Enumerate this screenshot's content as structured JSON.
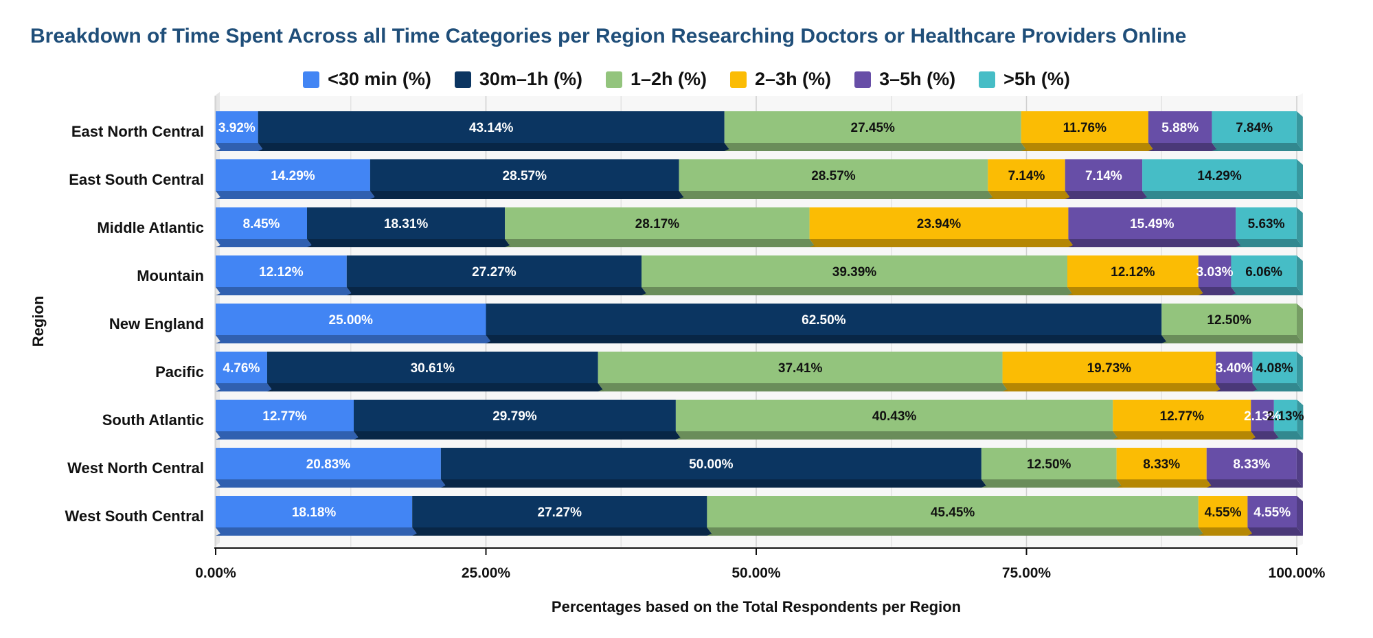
{
  "chart_data": {
    "type": "bar",
    "orientation": "horizontal",
    "stacked": true,
    "title": "Breakdown of Time Spent Across all Time Categories per Region Researching Doctors or Healthcare Providers Online",
    "xlabel": "Percentages based on the Total Respondents per Region",
    "ylabel": "Region",
    "xlim": [
      0,
      100
    ],
    "x_ticks": [
      0,
      25,
      50,
      75,
      100
    ],
    "x_tick_labels": [
      "0.00%",
      "25.00%",
      "50.00%",
      "75.00%",
      "100.00%"
    ],
    "legend_position": "top-center",
    "grid": true,
    "categories": [
      "East North Central",
      "East South Central",
      "Middle Atlantic",
      "Mountain",
      "New England",
      "Pacific",
      "South Atlantic",
      "West North Central",
      "West South Central"
    ],
    "series": [
      {
        "name": "<30 min (%)",
        "color": "#4285f4",
        "values": [
          3.92,
          14.29,
          8.45,
          12.12,
          25.0,
          4.76,
          12.77,
          20.83,
          18.18
        ],
        "labels": [
          "3.92%",
          "14.29%",
          "8.45%",
          "12.12%",
          "25.00%",
          "4.76%",
          "12.77%",
          "20.83%",
          "18.18%"
        ]
      },
      {
        "name": "30m–1h (%)",
        "color": "#0b3561",
        "values": [
          43.14,
          28.57,
          18.31,
          27.27,
          62.5,
          30.61,
          29.79,
          50.0,
          27.27
        ],
        "labels": [
          "43.14%",
          "28.57%",
          "18.31%",
          "27.27%",
          "62.50%",
          "30.61%",
          "29.79%",
          "50.00%",
          "27.27%"
        ]
      },
      {
        "name": "1–2h (%)",
        "color": "#93c47d",
        "values": [
          27.45,
          28.57,
          28.17,
          39.39,
          12.5,
          37.41,
          40.43,
          12.5,
          45.45
        ],
        "labels": [
          "27.45%",
          "28.57%",
          "28.17%",
          "39.39%",
          "12.50%",
          "37.41%",
          "40.43%",
          "12.50%",
          "45.45%"
        ]
      },
      {
        "name": "2–3h (%)",
        "color": "#fbbc04",
        "values": [
          11.76,
          7.14,
          23.94,
          12.12,
          0,
          19.73,
          12.77,
          8.33,
          4.55
        ],
        "labels": [
          "11.76%",
          "7.14%",
          "23.94%",
          "12.12%",
          "",
          "19.73%",
          "12.77%",
          "8.33%",
          "4.55%"
        ]
      },
      {
        "name": "3–5h (%)",
        "color": "#674ea7",
        "values": [
          5.88,
          7.14,
          15.49,
          3.03,
          0,
          3.4,
          2.13,
          8.33,
          4.55
        ],
        "labels": [
          "5.88%",
          "7.14%",
          "15.49%",
          "3.03%",
          "",
          "3.40%",
          "2.13%",
          "8.33%",
          "4.55%"
        ]
      },
      {
        "name": ">5h (%)",
        "color": "#46bdc6",
        "values": [
          7.84,
          14.29,
          5.63,
          6.06,
          0,
          4.08,
          2.13,
          0,
          0
        ],
        "labels": [
          "7.84%",
          "14.29%",
          "5.63%",
          "6.06%",
          "",
          "4.08%",
          "2.13%",
          "",
          ""
        ]
      }
    ]
  }
}
